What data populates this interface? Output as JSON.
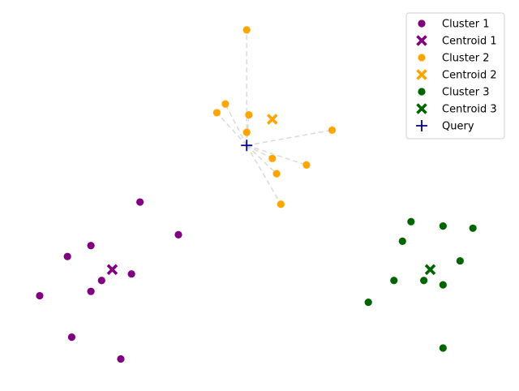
{
  "chart_data": {
    "type": "scatter",
    "title": "",
    "xlabel": "",
    "ylabel": "",
    "axes_visible": false,
    "grid": false,
    "legend_position": "top-right",
    "xlim": [
      -0.2,
      11.2
    ],
    "ylim": [
      -0.2,
      8.4
    ],
    "series": [
      {
        "name": "Cluster 1",
        "kind": "points",
        "marker": "circle",
        "color": "#800080",
        "points": [
          [
            2.7,
            3.95
          ],
          [
            3.6,
            3.2
          ],
          [
            1.55,
            2.95
          ],
          [
            1.0,
            2.7
          ],
          [
            2.5,
            2.3
          ],
          [
            1.8,
            2.15
          ],
          [
            1.55,
            1.9
          ],
          [
            0.35,
            1.8
          ],
          [
            1.1,
            0.85
          ],
          [
            2.25,
            0.35
          ]
        ]
      },
      {
        "name": "Centroid 1",
        "kind": "centroid",
        "marker": "x",
        "color": "#800080",
        "points": [
          [
            2.05,
            2.4
          ]
        ]
      },
      {
        "name": "Cluster 2",
        "kind": "points",
        "marker": "circle",
        "color": "#FFA500",
        "points": [
          [
            5.2,
            7.9
          ],
          [
            4.7,
            6.2
          ],
          [
            4.5,
            6.0
          ],
          [
            5.25,
            5.95
          ],
          [
            5.2,
            5.55
          ],
          [
            7.2,
            5.6
          ],
          [
            5.8,
            4.95
          ],
          [
            6.6,
            4.8
          ],
          [
            5.9,
            4.6
          ],
          [
            6.0,
            3.9
          ]
        ]
      },
      {
        "name": "Centroid 2",
        "kind": "centroid",
        "marker": "x",
        "color": "#FFA500",
        "points": [
          [
            5.8,
            5.85
          ]
        ]
      },
      {
        "name": "Cluster 3",
        "kind": "points",
        "marker": "circle",
        "color": "#006400",
        "points": [
          [
            9.05,
            3.5
          ],
          [
            9.8,
            3.4
          ],
          [
            10.5,
            3.35
          ],
          [
            8.85,
            3.05
          ],
          [
            10.2,
            2.6
          ],
          [
            8.65,
            2.15
          ],
          [
            9.35,
            2.15
          ],
          [
            9.8,
            2.05
          ],
          [
            8.05,
            1.65
          ],
          [
            9.8,
            0.6
          ]
        ]
      },
      {
        "name": "Centroid 3",
        "kind": "centroid",
        "marker": "x",
        "color": "#006400",
        "points": [
          [
            9.5,
            2.4
          ]
        ]
      },
      {
        "name": "Query",
        "kind": "query",
        "marker": "plus",
        "color": "#00008B",
        "points": [
          [
            5.2,
            5.25
          ]
        ]
      }
    ],
    "query_links": {
      "from": [
        5.2,
        5.25
      ],
      "to_series": "Cluster 2",
      "color": "#d9d9d9",
      "style": "dashed"
    }
  }
}
